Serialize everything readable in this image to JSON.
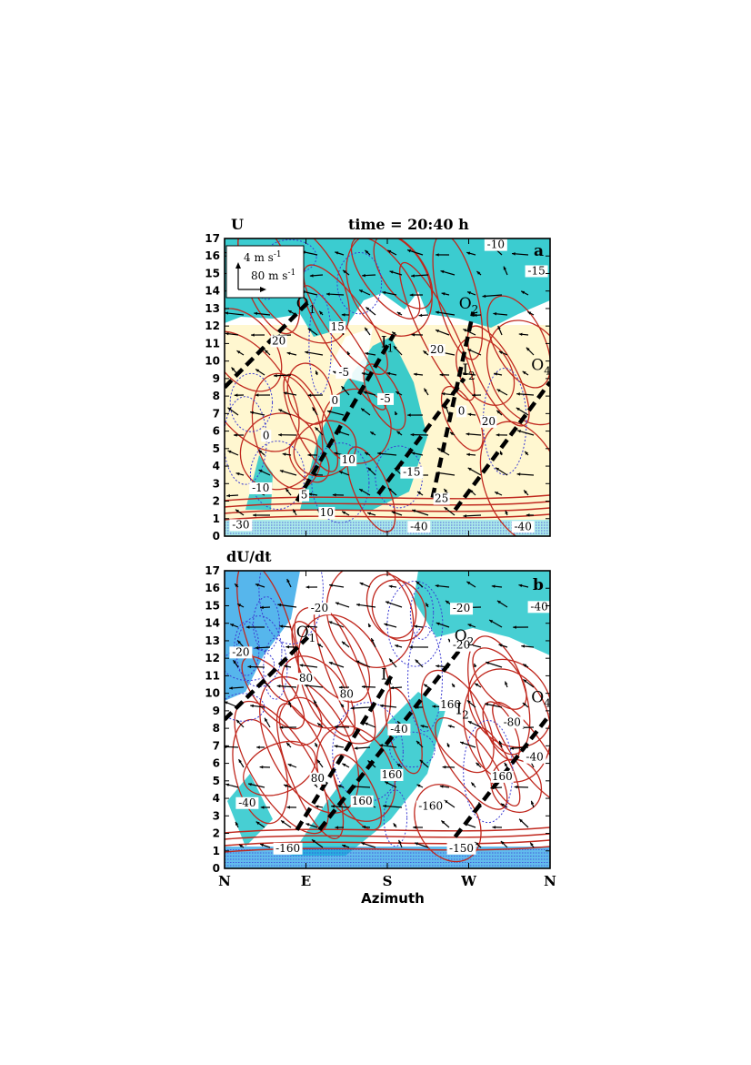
{
  "colors": {
    "red_contour": "#c0281e",
    "blue_contour": "#3c3cd2",
    "cyan_fill": "#19c3c8",
    "light_cyan_fill": "#aaeaea",
    "yellow_fill": "#fff7d0",
    "blue_fill": "#1e9ee6",
    "vector": "#000000",
    "dashed_line": "#000000"
  },
  "chart_data": [
    {
      "panel": "a",
      "type": "heatmap",
      "title_left": "U",
      "title_center": "time = 20:40 h",
      "ylim": [
        0,
        17
      ],
      "yticks": [
        "0",
        "1",
        "2",
        "3",
        "4",
        "5",
        "6",
        "7",
        "8",
        "9",
        "10",
        "11",
        "12",
        "13",
        "14",
        "15",
        "16",
        "17"
      ],
      "x_categories": [
        "N",
        "E",
        "S",
        "W",
        "N"
      ],
      "xlim": [
        0,
        360
      ],
      "legend": {
        "line1": "4 m s",
        "line1_sup": "-1",
        "line2": "80 m s",
        "line2_sup": "-1",
        "placement": "top-left"
      },
      "features": [
        {
          "label": "O",
          "sub": "1",
          "x": 90,
          "y": 13.0
        },
        {
          "label": "O",
          "sub": "2",
          "x": 270,
          "y": 13.0
        },
        {
          "label": "I",
          "sub": "1",
          "x": 180,
          "y": 10.8
        },
        {
          "label": "I",
          "sub": "2",
          "x": 270,
          "y": 9.2
        },
        {
          "label": "O",
          "sub": "4",
          "x": 350,
          "y": 9.5
        }
      ],
      "contour_labels": [
        {
          "text": "-10",
          "x": 300,
          "y": 16.5
        },
        {
          "text": "-15",
          "x": 345,
          "y": 15.0
        },
        {
          "text": "15",
          "x": 125,
          "y": 11.8
        },
        {
          "text": "20",
          "x": 60,
          "y": 11.0
        },
        {
          "text": "20",
          "x": 235,
          "y": 10.5
        },
        {
          "text": "-5",
          "x": 132,
          "y": 9.2
        },
        {
          "text": "-5",
          "x": 178,
          "y": 7.7
        },
        {
          "text": "0",
          "x": 122,
          "y": 7.6
        },
        {
          "text": "0",
          "x": 262,
          "y": 7.0
        },
        {
          "text": "20",
          "x": 292,
          "y": 6.4
        },
        {
          "text": "0",
          "x": 46,
          "y": 5.6
        },
        {
          "text": "10",
          "x": 137,
          "y": 4.2
        },
        {
          "text": "-15",
          "x": 207,
          "y": 3.5
        },
        {
          "text": "-10",
          "x": 40,
          "y": 2.6
        },
        {
          "text": "5",
          "x": 88,
          "y": 2.2
        },
        {
          "text": "25",
          "x": 240,
          "y": 2.0
        },
        {
          "text": "10",
          "x": 113,
          "y": 1.2
        },
        {
          "text": "-30",
          "x": 18,
          "y": 0.5
        },
        {
          "text": "-40",
          "x": 215,
          "y": 0.4
        },
        {
          "text": "-40",
          "x": 330,
          "y": 0.4
        }
      ],
      "dashed_lines": [
        {
          "from": [
            0,
            8.5
          ],
          "to": [
            95,
            13.5
          ]
        },
        {
          "from": [
            80,
            2.0
          ],
          "to": [
            187,
            11.5
          ]
        },
        {
          "from": [
            170,
            2.4
          ],
          "to": [
            265,
            9.0
          ]
        },
        {
          "from": [
            230,
            2.2
          ],
          "to": [
            275,
            12.8
          ]
        },
        {
          "from": [
            255,
            1.5
          ],
          "to": [
            360,
            8.8
          ]
        }
      ]
    },
    {
      "panel": "b",
      "type": "heatmap",
      "title_left": "dU/dt",
      "ylim": [
        0,
        17
      ],
      "yticks": [
        "0",
        "1",
        "2",
        "3",
        "4",
        "5",
        "6",
        "7",
        "8",
        "9",
        "10",
        "11",
        "12",
        "13",
        "14",
        "15",
        "16",
        "17"
      ],
      "x_categories": [
        "N",
        "E",
        "S",
        "W",
        "N"
      ],
      "xlim": [
        0,
        360
      ],
      "xlabel": "Azimuth",
      "features": [
        {
          "label": "O",
          "sub": "1",
          "x": 90,
          "y": 13.2
        },
        {
          "label": "O",
          "sub": "2",
          "x": 265,
          "y": 13.0
        },
        {
          "label": "I",
          "sub": "1",
          "x": 180,
          "y": 10.8
        },
        {
          "label": "I",
          "sub": "2",
          "x": 263,
          "y": 8.8
        },
        {
          "label": "O",
          "sub": "4",
          "x": 350,
          "y": 9.5
        }
      ],
      "contour_labels": [
        {
          "text": "-20",
          "x": 105,
          "y": 14.7
        },
        {
          "text": "-20",
          "x": 262,
          "y": 14.7
        },
        {
          "text": "-40",
          "x": 348,
          "y": 14.8
        },
        {
          "text": "-20",
          "x": 18,
          "y": 12.2
        },
        {
          "text": "-20",
          "x": 262,
          "y": 12.6
        },
        {
          "text": "80",
          "x": 90,
          "y": 10.7
        },
        {
          "text": "80",
          "x": 135,
          "y": 9.8
        },
        {
          "text": "160",
          "x": 250,
          "y": 9.2
        },
        {
          "text": "-80",
          "x": 318,
          "y": 8.2
        },
        {
          "text": "-40",
          "x": 193,
          "y": 7.8
        },
        {
          "text": "-40",
          "x": 343,
          "y": 6.2
        },
        {
          "text": "80",
          "x": 103,
          "y": 5.0
        },
        {
          "text": "160",
          "x": 185,
          "y": 5.2
        },
        {
          "text": "160",
          "x": 307,
          "y": 5.1
        },
        {
          "text": "-40",
          "x": 25,
          "y": 3.6
        },
        {
          "text": "160",
          "x": 152,
          "y": 3.7
        },
        {
          "text": "-160",
          "x": 228,
          "y": 3.4
        },
        {
          "text": "-160",
          "x": 70,
          "y": 1.0
        },
        {
          "text": "-150",
          "x": 262,
          "y": 1.0
        }
      ],
      "dashed_lines": [
        {
          "from": [
            0,
            8.5
          ],
          "to": [
            92,
            13.2
          ]
        },
        {
          "from": [
            80,
            2.2
          ],
          "to": [
            187,
            11.2
          ]
        },
        {
          "from": [
            105,
            2.2
          ],
          "to": [
            265,
            12.8
          ]
        },
        {
          "from": [
            255,
            1.8
          ],
          "to": [
            360,
            8.8
          ]
        }
      ]
    }
  ]
}
